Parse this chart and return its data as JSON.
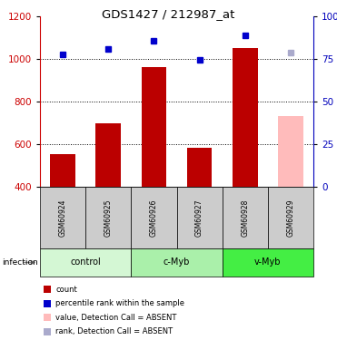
{
  "title": "GDS1427 / 212987_at",
  "samples": [
    "GSM60924",
    "GSM60925",
    "GSM60926",
    "GSM60927",
    "GSM60928",
    "GSM60929"
  ],
  "groups": [
    {
      "name": "control",
      "indices": [
        0,
        1
      ],
      "color": "#d4f7d4"
    },
    {
      "name": "c-Myb",
      "indices": [
        2,
        3
      ],
      "color": "#aaf0aa"
    },
    {
      "name": "v-Myb",
      "indices": [
        4,
        5
      ],
      "color": "#44ee44"
    }
  ],
  "bar_values": [
    555,
    700,
    960,
    585,
    1050,
    730
  ],
  "bar_colors": [
    "#bb0000",
    "#bb0000",
    "#bb0000",
    "#bb0000",
    "#bb0000",
    "#ffbbbb"
  ],
  "dot_values": [
    1020,
    1048,
    1085,
    995,
    1110,
    1030
  ],
  "dot_colors": [
    "#0000cc",
    "#0000cc",
    "#0000cc",
    "#0000cc",
    "#0000cc",
    "#aaaacc"
  ],
  "ylim_left": [
    400,
    1200
  ],
  "ylim_right": [
    0,
    100
  ],
  "yticks_left": [
    400,
    600,
    800,
    1000,
    1200
  ],
  "yticks_right": [
    0,
    25,
    50,
    75,
    100
  ],
  "hlines": [
    600,
    800,
    1000
  ],
  "left_tick_color": "#cc0000",
  "right_tick_color": "#0000bb",
  "sample_row_color": "#cccccc",
  "legend_items": [
    {
      "label": "count",
      "color": "#bb0000"
    },
    {
      "label": "percentile rank within the sample",
      "color": "#0000cc"
    },
    {
      "label": "value, Detection Call = ABSENT",
      "color": "#ffbbbb"
    },
    {
      "label": "rank, Detection Call = ABSENT",
      "color": "#aaaacc"
    }
  ]
}
